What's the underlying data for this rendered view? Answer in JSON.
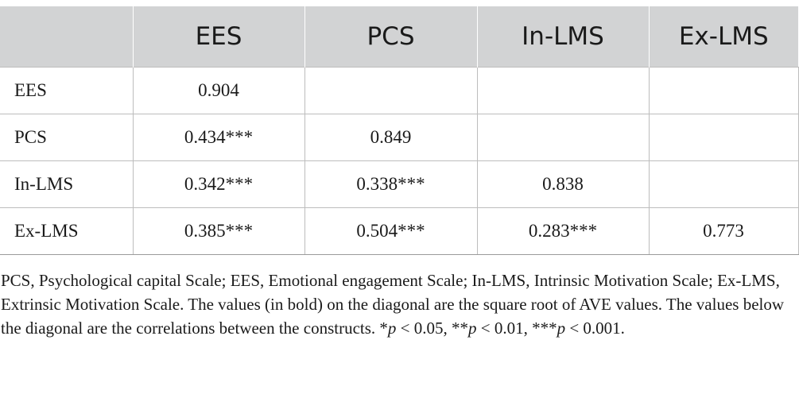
{
  "table": {
    "columns": [
      "",
      "EES",
      "PCS",
      "In-LMS",
      "Ex-LMS"
    ],
    "rows": [
      {
        "label": "EES",
        "cells": [
          "0.904",
          "",
          "",
          ""
        ]
      },
      {
        "label": "PCS",
        "cells": [
          "0.434***",
          "0.849",
          "",
          ""
        ]
      },
      {
        "label": "In-LMS",
        "cells": [
          "0.342***",
          "0.338***",
          "0.838",
          ""
        ]
      },
      {
        "label": "Ex-LMS",
        "cells": [
          "0.385***",
          "0.504***",
          "0.283***",
          "0.773"
        ]
      }
    ]
  },
  "note": {
    "text": "PCS, Psychological capital Scale; EES, Emotional engagement Scale; In-LMS, Intrinsic Motivation Scale; Ex-LMS, Extrinsic Motivation Scale. The values (in bold) on the diagonal are the square root of AVE values. The values below the diagonal are the correlations between the constructs. *",
    "p1": "p",
    "t1": " < 0.05, **",
    "p2": "p",
    "t2": " < 0.01, ***",
    "p3": "p",
    "t3": " < 0.001."
  }
}
